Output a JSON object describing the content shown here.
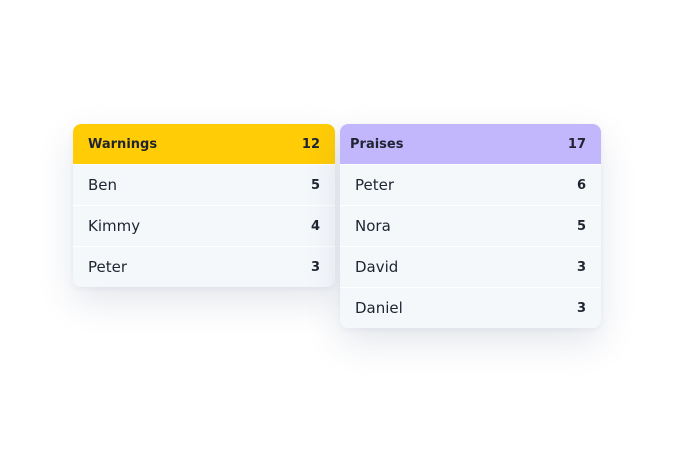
{
  "warnings": {
    "title": "Warnings",
    "total": "12",
    "color": "#ffcc06",
    "rows": [
      {
        "name": "Ben",
        "count": "5"
      },
      {
        "name": "Kimmy",
        "count": "4"
      },
      {
        "name": "Peter",
        "count": "3"
      }
    ]
  },
  "praises": {
    "title": "Praises",
    "total": "17",
    "color": "#c2b6fd",
    "rows": [
      {
        "name": "Peter",
        "count": "6"
      },
      {
        "name": "Nora",
        "count": "5"
      },
      {
        "name": "David",
        "count": "3"
      },
      {
        "name": "Daniel",
        "count": "3"
      }
    ]
  }
}
